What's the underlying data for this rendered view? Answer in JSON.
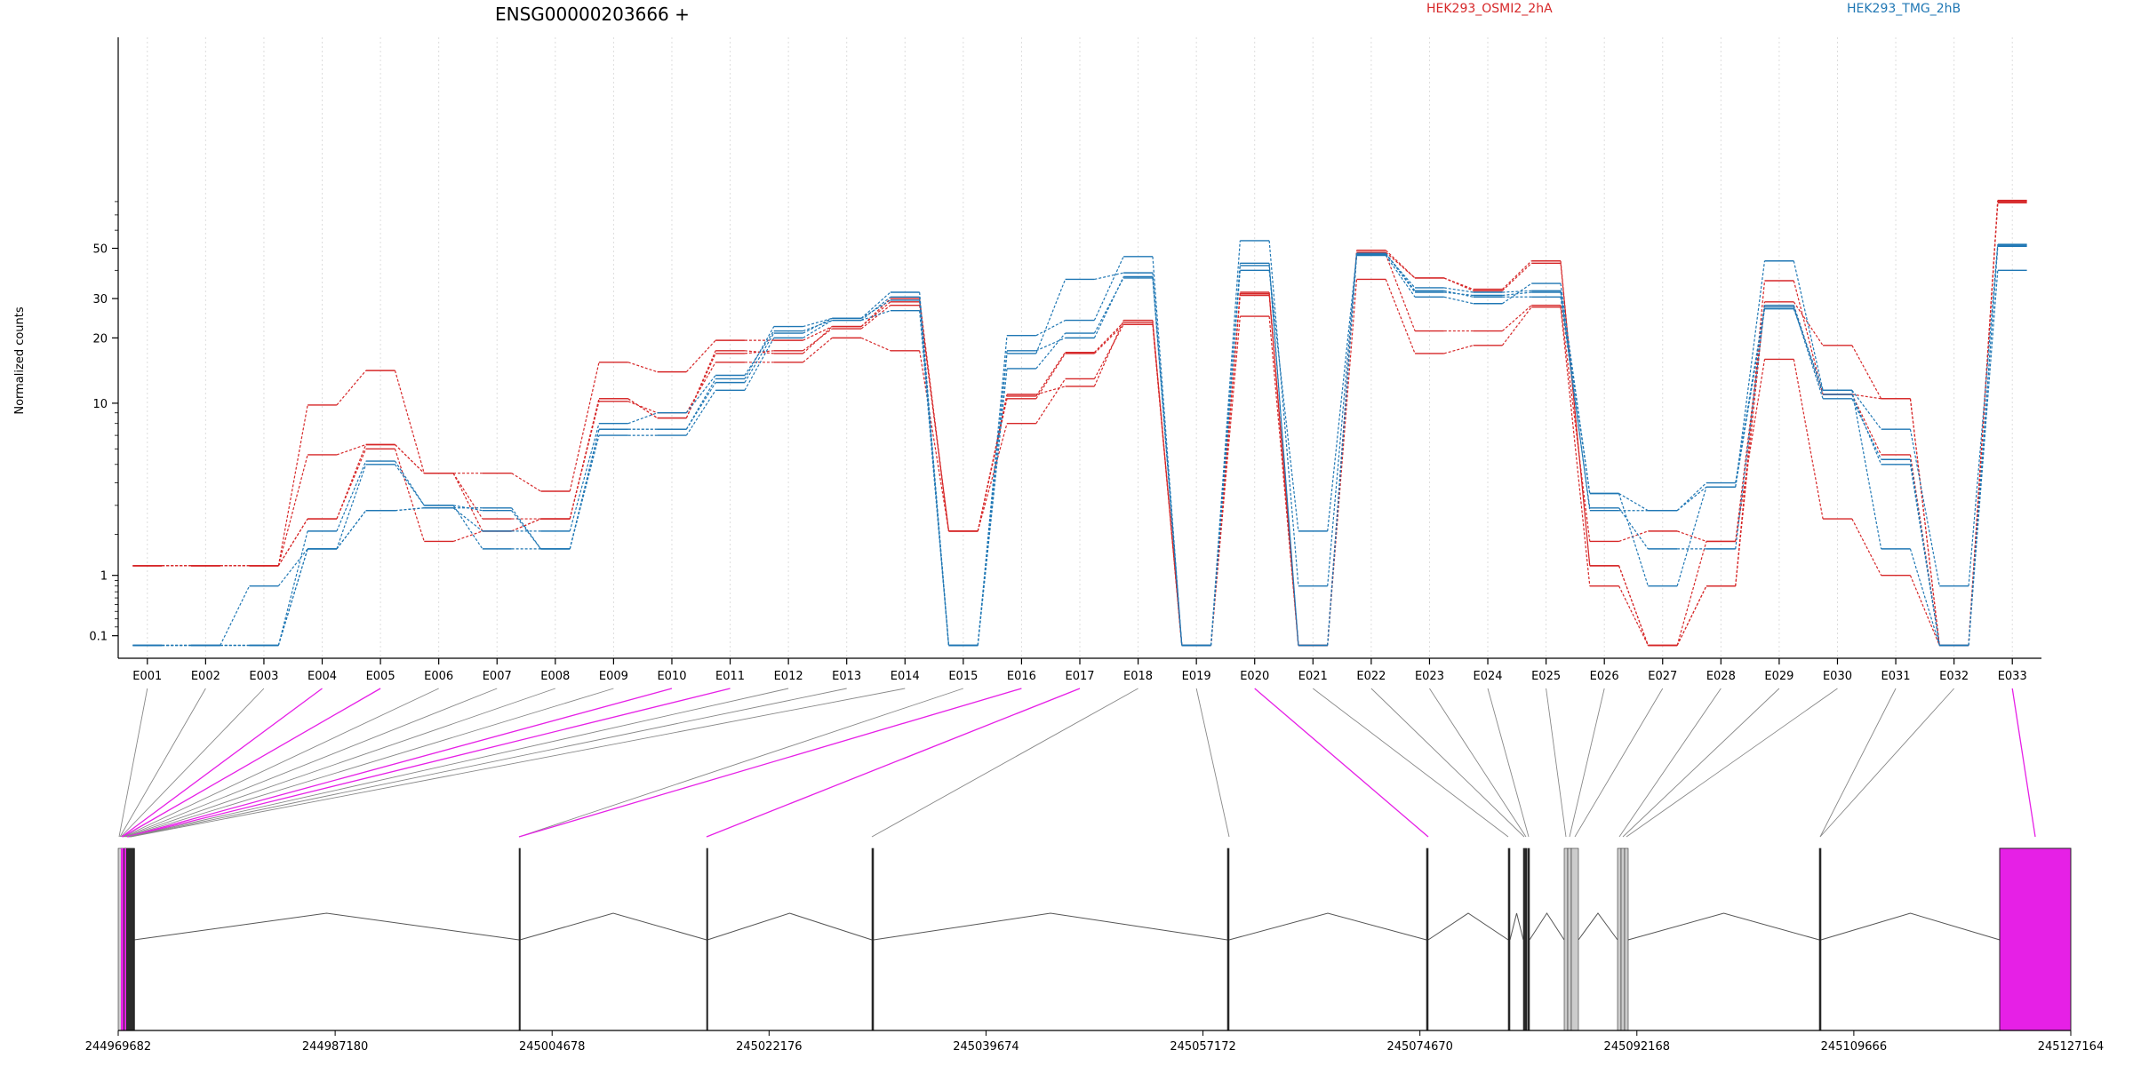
{
  "title": "ENSG00000203666 +",
  "legend": [
    {
      "label": "HEK293_OSMI2_2hA",
      "color": "#d62728"
    },
    {
      "label": "HEK293_TMG_2hB",
      "color": "#1f77b4"
    }
  ],
  "chart_data": {
    "type": "line",
    "ylabel": "Normalized counts",
    "yscale": "log",
    "yticks": [
      "0.1",
      "1",
      "10",
      "20",
      "30",
      "50"
    ],
    "categories": [
      "E001",
      "E002",
      "E003",
      "E004",
      "E005",
      "E006",
      "E007",
      "E008",
      "E009",
      "E010",
      "E011",
      "E012",
      "E013",
      "E014",
      "E015",
      "E016",
      "E017",
      "E018",
      "E019",
      "E020",
      "E021",
      "E022",
      "E023",
      "E024",
      "E025",
      "E026",
      "E027",
      "E028",
      "E029",
      "E030",
      "E031",
      "E032",
      "E033"
    ],
    "series": [
      {
        "group": 0,
        "values": [
          1.2,
          1.2,
          1.2,
          9.8,
          14.2,
          4.5,
          4.5,
          3.6,
          15.5,
          14.0,
          19.5,
          19.5,
          22.5,
          29.0,
          2.1,
          10.5,
          17.0,
          23.0,
          0.0,
          32.0,
          0.0,
          48.0,
          37.0,
          32.5,
          43.0,
          1.2,
          0.0,
          0.8,
          29.0,
          18.5,
          10.5,
          0.0,
          80.0
        ]
      },
      {
        "group": 0,
        "values": [
          1.2,
          1.2,
          1.2,
          5.6,
          6.3,
          4.5,
          2.5,
          2.5,
          10.5,
          8.5,
          17.0,
          17.5,
          22.0,
          28.0,
          2.1,
          10.8,
          17.2,
          23.5,
          0.0,
          31.0,
          0.0,
          47.0,
          21.5,
          21.5,
          28.0,
          1.8,
          2.1,
          1.8,
          28.0,
          11.0,
          5.6,
          0.0,
          79.0
        ]
      },
      {
        "group": 0,
        "values": [
          1.2,
          1.2,
          1.2,
          2.5,
          6.0,
          1.8,
          2.1,
          2.5,
          10.2,
          9.0,
          15.5,
          15.5,
          20.0,
          17.5,
          2.1,
          8.0,
          13.0,
          23.0,
          0.0,
          25.0,
          0.0,
          36.5,
          17.0,
          18.5,
          27.5,
          0.8,
          0.0,
          1.8,
          16.0,
          2.5,
          1.0,
          0.0,
          80.5
        ]
      },
      {
        "group": 0,
        "values": [
          1.2,
          1.2,
          1.2,
          2.5,
          6.3,
          4.5,
          2.1,
          2.5,
          10.5,
          8.5,
          17.5,
          17.0,
          22.5,
          30.0,
          2.1,
          11.0,
          12.0,
          24.0,
          0.0,
          31.5,
          0.0,
          49.0,
          37.0,
          33.0,
          44.0,
          1.2,
          0.0,
          0.8,
          36.0,
          11.0,
          10.5,
          0.0,
          81.0
        ]
      },
      {
        "group": 1,
        "values": [
          0.0,
          0.0,
          0.8,
          1.6,
          2.8,
          2.9,
          2.9,
          1.6,
          7.5,
          7.5,
          13.0,
          22.5,
          24.5,
          32.0,
          0.0,
          20.5,
          24.0,
          46.0,
          0.0,
          40.0,
          2.1,
          47.0,
          33.5,
          32.0,
          32.5,
          2.8,
          2.8,
          3.8,
          27.0,
          11.5,
          7.5,
          0.8,
          52.0
        ]
      },
      {
        "group": 1,
        "values": [
          0.0,
          0.0,
          0.0,
          2.1,
          5.2,
          3.0,
          1.6,
          1.6,
          7.0,
          7.0,
          11.5,
          20.0,
          24.0,
          26.5,
          0.0,
          17.0,
          36.5,
          39.0,
          0.0,
          54.0,
          0.8,
          47.5,
          32.5,
          30.5,
          30.5,
          2.9,
          1.6,
          1.6,
          27.5,
          10.5,
          5.3,
          0.0,
          51.5
        ]
      },
      {
        "group": 1,
        "values": [
          0.0,
          0.0,
          0.0,
          1.6,
          2.8,
          2.9,
          2.1,
          2.1,
          8.0,
          9.0,
          13.5,
          21.5,
          24.0,
          30.5,
          0.0,
          14.5,
          21.0,
          37.0,
          0.0,
          42.0,
          0.0,
          46.5,
          30.5,
          28.5,
          35.0,
          3.5,
          0.8,
          3.8,
          44.0,
          11.5,
          1.6,
          0.0,
          51.0
        ]
      },
      {
        "group": 1,
        "values": [
          0.0,
          0.0,
          0.0,
          1.6,
          5.0,
          3.0,
          2.8,
          1.6,
          7.5,
          7.5,
          12.5,
          21.0,
          24.5,
          29.5,
          0.0,
          17.5,
          20.0,
          37.5,
          0.0,
          43.0,
          0.0,
          47.5,
          32.0,
          31.0,
          32.0,
          3.5,
          2.8,
          4.0,
          28.0,
          11.0,
          5.0,
          0.0,
          40.0
        ]
      }
    ],
    "gene_axis": {
      "ticks": [
        "244969682",
        "244987180",
        "245004678",
        "245022176",
        "245039674",
        "245057172",
        "245074670",
        "245092168",
        "245109666",
        "245127164"
      ]
    }
  }
}
